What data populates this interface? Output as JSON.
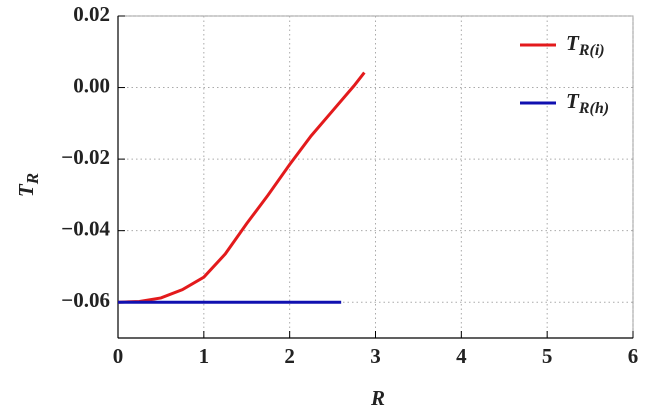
{
  "chart_data": {
    "type": "line",
    "xlabel": "R",
    "ylabel": {
      "main": "T",
      "sub": "R"
    },
    "xlim": [
      0,
      6
    ],
    "ylim": [
      -0.07,
      0.02
    ],
    "xticks": [
      0,
      1,
      2,
      3,
      4,
      5,
      6
    ],
    "yticks": [
      {
        "value": -0.06,
        "label": "−0.06"
      },
      {
        "value": -0.04,
        "label": "−0.04"
      },
      {
        "value": -0.02,
        "label": "−0.02"
      },
      {
        "value": 0,
        "label": "0.00"
      },
      {
        "value": 0.02,
        "label": "0.02"
      }
    ],
    "grid": true,
    "legend": "upper right",
    "series": [
      {
        "name": "T",
        "name_sub": "R(i)",
        "color": "#e31a1c",
        "x": [
          0,
          0.25,
          0.5,
          0.75,
          1,
          1.25,
          1.5,
          1.75,
          2,
          2.25,
          2.5,
          2.75,
          2.87
        ],
        "values": [
          -0.06,
          -0.0598,
          -0.0588,
          -0.0565,
          -0.053,
          -0.0465,
          -0.038,
          -0.03,
          -0.0215,
          -0.0135,
          -0.0065,
          0.0005,
          0.0042
        ]
      },
      {
        "name": "T",
        "name_sub": "R(h)",
        "color": "#1010b0",
        "x": [
          0,
          2.6
        ],
        "values": [
          -0.06,
          -0.06
        ]
      }
    ]
  }
}
